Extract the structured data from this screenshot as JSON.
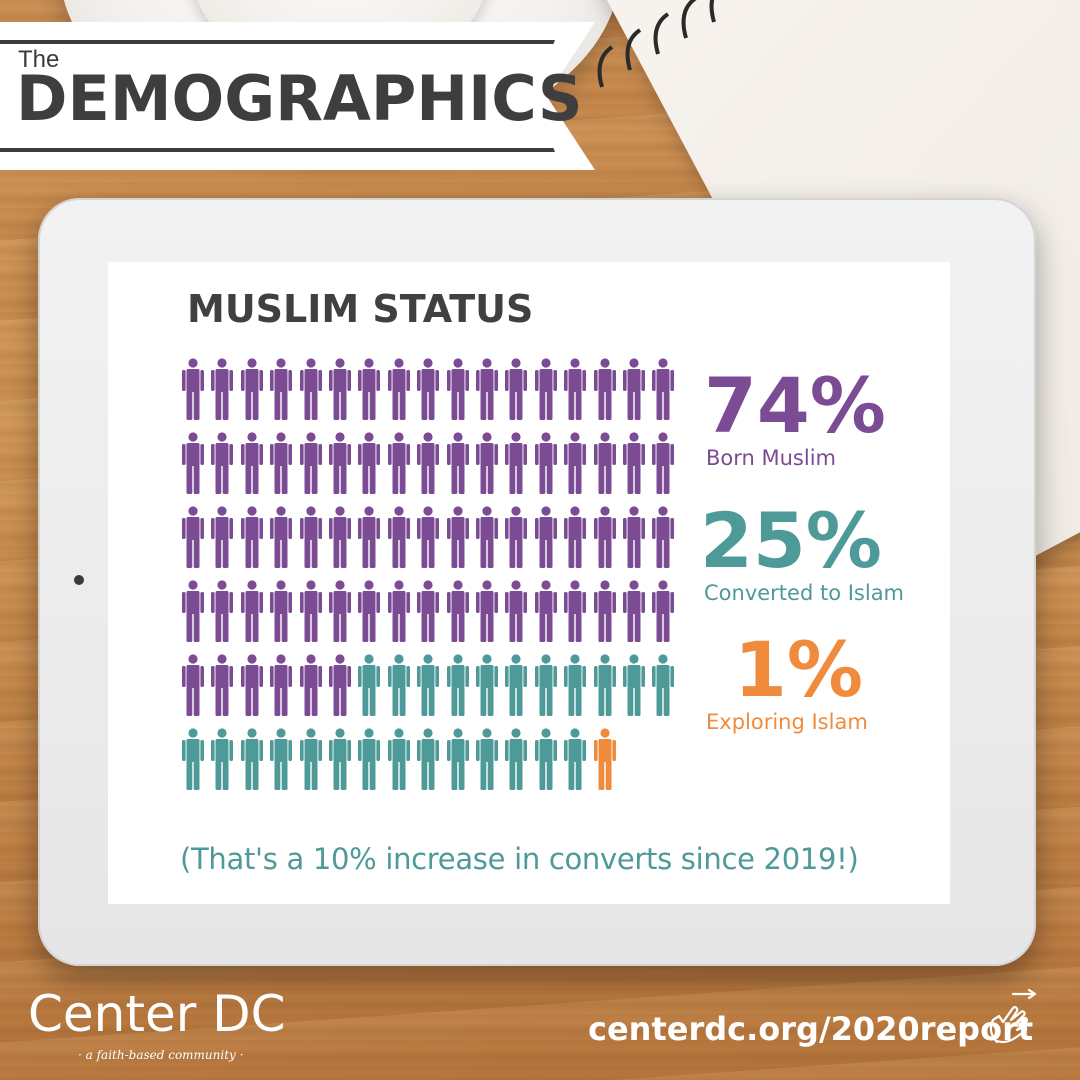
{
  "banner": {
    "pre_title": "The",
    "title": "DEMOGRAPHICS"
  },
  "chart": {
    "title": "MUSLIM STATUS",
    "footnote": "(That's a 10% increase in converts since 2019!)"
  },
  "chart_data": {
    "type": "pictogram",
    "title": "MUSLIM STATUS",
    "total_icons": 100,
    "series": [
      {
        "name": "Born Muslim",
        "percent_label": "74%",
        "value": 74,
        "color": "#7b4b94"
      },
      {
        "name": "Converted to Islam",
        "percent_label": "25%",
        "value": 25,
        "color": "#4e9a98"
      },
      {
        "name": "Exploring Islam",
        "percent_label": "1%",
        "value": 1,
        "color": "#f08a3c"
      }
    ]
  },
  "footer": {
    "logo": "Center DC",
    "tagline": "· a faith-based community ·",
    "url": "centerdc.org/2020report"
  },
  "icons": {
    "person": "person-icon",
    "hand": "pointing-hand-icon",
    "camera": "camera-dot"
  }
}
